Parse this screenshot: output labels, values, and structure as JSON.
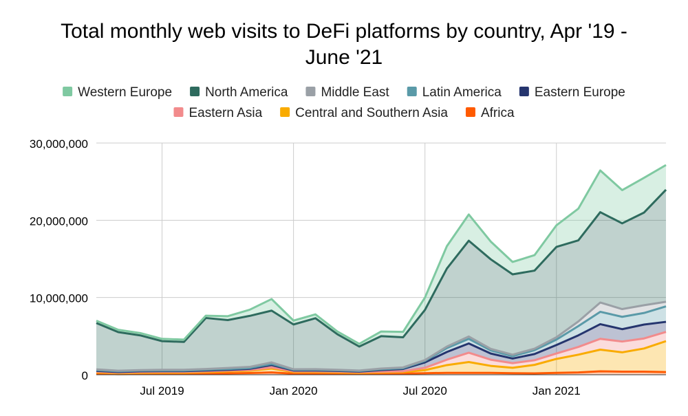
{
  "chart_data": {
    "type": "area",
    "stacked": true,
    "title_line1": "Total monthly web visits to DeFi platforms by country, Apr '19 -",
    "title_line2": "June '21",
    "x": [
      "2019-04",
      "2019-05",
      "2019-06",
      "2019-07",
      "2019-08",
      "2019-09",
      "2019-10",
      "2019-11",
      "2019-12",
      "2020-01",
      "2020-02",
      "2020-03",
      "2020-04",
      "2020-05",
      "2020-06",
      "2020-07",
      "2020-08",
      "2020-09",
      "2020-10",
      "2020-11",
      "2020-12",
      "2021-01",
      "2021-02",
      "2021-03",
      "2021-04",
      "2021-05",
      "2021-06"
    ],
    "x_tick_labels": [
      "Jul 2019",
      "Jan 2020",
      "Jul 2020",
      "Jan 2021"
    ],
    "x_tick_values": [
      "2019-07",
      "2020-01",
      "2020-07",
      "2021-01"
    ],
    "y_tick_labels": [
      "0",
      "10,000,000",
      "20,000,000",
      "30,000,000"
    ],
    "y_tick_values": [
      0,
      10000000,
      20000000,
      30000000
    ],
    "ylim": [
      0,
      30000000
    ],
    "grid": true,
    "legend_position": "top",
    "series": [
      {
        "name": "Africa",
        "color": "#ff5a00",
        "values": [
          150000,
          80000,
          100000,
          120000,
          120000,
          150000,
          180000,
          220000,
          300000,
          150000,
          150000,
          130000,
          100000,
          150000,
          150000,
          200000,
          250000,
          250000,
          250000,
          200000,
          180000,
          250000,
          300000,
          450000,
          400000,
          400000,
          350000
        ]
      },
      {
        "name": "Central and Southern Asia",
        "color": "#f9ab00",
        "values": [
          150000,
          120000,
          150000,
          150000,
          150000,
          200000,
          250000,
          300000,
          500000,
          200000,
          200000,
          170000,
          150000,
          150000,
          200000,
          400000,
          1000000,
          1400000,
          900000,
          700000,
          1100000,
          1800000,
          2300000,
          2800000,
          2500000,
          3000000,
          4000000
        ]
      },
      {
        "name": "Eastern Asia",
        "color": "#f28b8c",
        "values": [
          100000,
          80000,
          100000,
          100000,
          100000,
          100000,
          100000,
          100000,
          150000,
          100000,
          100000,
          100000,
          80000,
          100000,
          100000,
          300000,
          700000,
          1200000,
          800000,
          600000,
          600000,
          700000,
          1000000,
          1400000,
          1400000,
          1300000,
          1200000
        ]
      },
      {
        "name": "Eastern Europe",
        "color": "#25356e",
        "values": [
          100000,
          80000,
          100000,
          100000,
          100000,
          100000,
          100000,
          150000,
          300000,
          100000,
          100000,
          100000,
          80000,
          200000,
          300000,
          700000,
          1000000,
          1200000,
          800000,
          600000,
          800000,
          1100000,
          1500000,
          1900000,
          1600000,
          1800000,
          1300000
        ]
      },
      {
        "name": "Latin America",
        "color": "#5a9aa8",
        "values": [
          100000,
          80000,
          80000,
          80000,
          80000,
          100000,
          100000,
          100000,
          150000,
          80000,
          80000,
          80000,
          80000,
          100000,
          100000,
          200000,
          500000,
          600000,
          400000,
          300000,
          500000,
          700000,
          1200000,
          1600000,
          1600000,
          1500000,
          2000000
        ]
      },
      {
        "name": "Middle East",
        "color": "#9aa0a6",
        "values": [
          100000,
          80000,
          70000,
          100000,
          100000,
          100000,
          150000,
          150000,
          200000,
          80000,
          90000,
          70000,
          60000,
          100000,
          100000,
          100000,
          200000,
          300000,
          200000,
          200000,
          200000,
          300000,
          600000,
          1200000,
          1000000,
          1000000,
          600000
        ]
      },
      {
        "name": "North America",
        "color": "#2e6b5e",
        "values": [
          6000000,
          5000000,
          4500000,
          3700000,
          3600000,
          6600000,
          6200000,
          6600000,
          6700000,
          5800000,
          6600000,
          4600000,
          3100000,
          4200000,
          3900000,
          6500000,
          10100000,
          12400000,
          11600000,
          10400000,
          10100000,
          11700000,
          10500000,
          11700000,
          11100000,
          12000000,
          14500000
        ]
      },
      {
        "name": "Western Europe",
        "color": "#7fc9a1",
        "values": [
          300000,
          300000,
          300000,
          300000,
          300000,
          300000,
          500000,
          800000,
          1500000,
          500000,
          500000,
          350000,
          350000,
          600000,
          700000,
          1600000,
          2900000,
          3400000,
          2300000,
          1600000,
          2000000,
          2800000,
          4100000,
          5400000,
          4300000,
          4500000,
          3200000
        ]
      }
    ],
    "legend_rows": [
      [
        "Western Europe",
        "North America",
        "Middle East",
        "Latin America",
        "Eastern Europe"
      ],
      [
        "Eastern Asia",
        "Central and Southern Asia",
        "Africa"
      ]
    ]
  }
}
